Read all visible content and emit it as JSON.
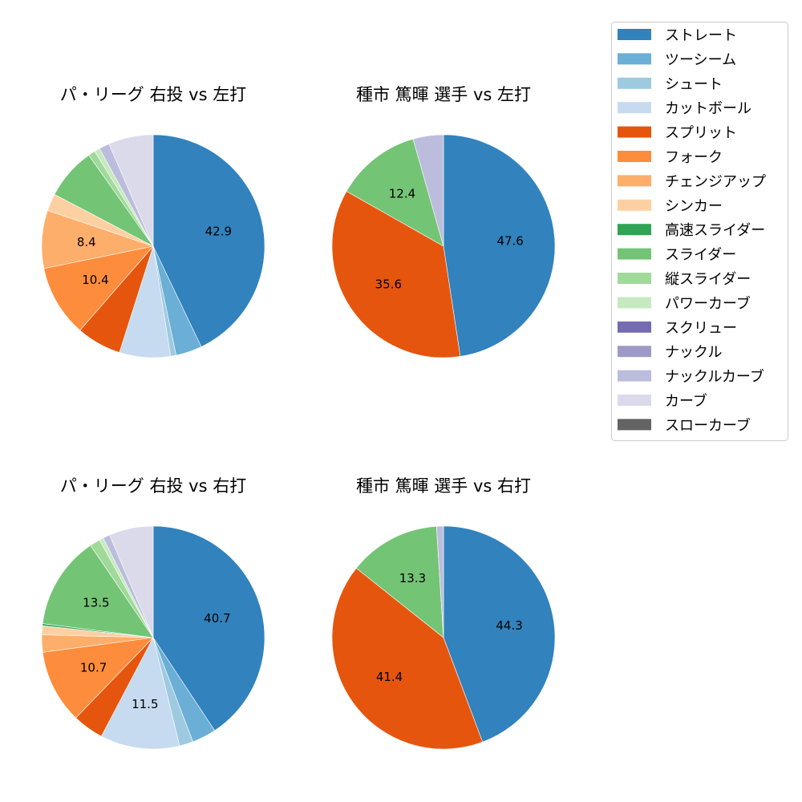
{
  "colors": [
    "#3182bd",
    "#6baed6",
    "#9ecae1",
    "#c6dbef",
    "#e6550d",
    "#fd8d3c",
    "#fdae6b",
    "#fdd0a2",
    "#31a354",
    "#74c476",
    "#a1d99b",
    "#c7e9c0",
    "#756bb1",
    "#9e9ac8",
    "#bcbddc",
    "#dadaeb",
    "#636363"
  ],
  "legend": [
    "ストレート",
    "ツーシーム",
    "シュート",
    "カットボール",
    "スプリット",
    "フォーク",
    "チェンジアップ",
    "シンカー",
    "高速スライダー",
    "スライダー",
    "縦スライダー",
    "パワーカーブ",
    "スクリュー",
    "ナックル",
    "ナックルカーブ",
    "カーブ",
    "スローカーブ"
  ],
  "chart_data": [
    {
      "type": "pie",
      "title": "パ・リーグ 右投 vs 左打",
      "categories": [
        "ストレート",
        "ツーシーム",
        "シュート",
        "カットボール",
        "スプリット",
        "フォーク",
        "チェンジアップ",
        "シンカー",
        "高速スライダー",
        "スライダー",
        "縦スライダー",
        "パワーカーブ",
        "スクリュー",
        "ナックル",
        "ナックルカーブ",
        "カーブ",
        "スローカーブ"
      ],
      "values": [
        42.9,
        3.8,
        0.8,
        7.4,
        6.5,
        10.4,
        8.4,
        2.5,
        0,
        7.5,
        1.0,
        0.8,
        0,
        0,
        1.5,
        6.5,
        0
      ],
      "labeled_values": [
        "42.9",
        "10.4",
        "8.4"
      ]
    },
    {
      "type": "pie",
      "title": "種市 篤暉 選手 vs 左打",
      "categories": [
        "ストレート",
        "ツーシーム",
        "シュート",
        "カットボール",
        "スプリット",
        "フォーク",
        "チェンジアップ",
        "シンカー",
        "高速スライダー",
        "スライダー",
        "縦スライダー",
        "パワーカーブ",
        "スクリュー",
        "ナックル",
        "ナックルカーブ",
        "カーブ",
        "スローカーブ"
      ],
      "values": [
        47.6,
        0,
        0,
        0,
        35.6,
        0,
        0,
        0,
        0,
        12.4,
        0,
        0,
        0,
        0,
        4.4,
        0,
        0
      ],
      "labeled_values": [
        "47.6",
        "35.6",
        "12.4"
      ]
    },
    {
      "type": "pie",
      "title": "パ・リーグ 右投 vs 右打",
      "categories": [
        "ストレート",
        "ツーシーム",
        "シュート",
        "カットボール",
        "スプリット",
        "フォーク",
        "チェンジアップ",
        "シンカー",
        "高速スライダー",
        "スライダー",
        "縦スライダー",
        "パワーカーブ",
        "スクリュー",
        "ナックル",
        "ナックルカーブ",
        "カーブ",
        "スローカーブ"
      ],
      "values": [
        40.7,
        3.5,
        2.0,
        11.5,
        4.5,
        10.7,
        2.5,
        1.3,
        0.3,
        13.5,
        1.5,
        0.6,
        0,
        0,
        1.0,
        6.4,
        0
      ],
      "labeled_values": [
        "40.7",
        "11.5",
        "10.7",
        "13.5"
      ]
    },
    {
      "type": "pie",
      "title": "種市 篤暉 選手 vs 右打",
      "categories": [
        "ストレート",
        "ツーシーム",
        "シュート",
        "カットボール",
        "スプリット",
        "フォーク",
        "チェンジアップ",
        "シンカー",
        "高速スライダー",
        "スライダー",
        "縦スライダー",
        "パワーカーブ",
        "スクリュー",
        "ナックル",
        "ナックルカーブ",
        "カーブ",
        "スローカーブ"
      ],
      "values": [
        44.3,
        0,
        0,
        0,
        41.4,
        0,
        0,
        0,
        0,
        13.3,
        0,
        0,
        0,
        0,
        1.0,
        0,
        0
      ],
      "labeled_values": [
        "44.3",
        "41.4",
        "13.3"
      ]
    }
  ]
}
